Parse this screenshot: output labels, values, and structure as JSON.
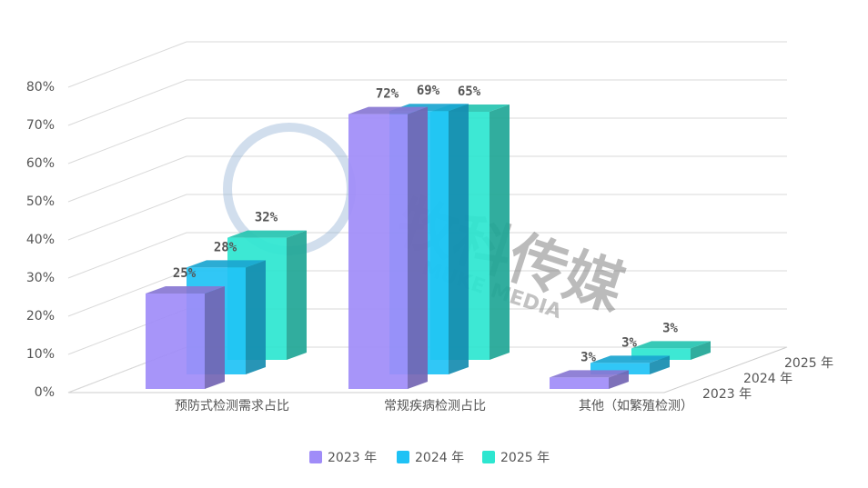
{
  "chart_data": {
    "type": "bar",
    "categories": [
      "预防式检测需求占比",
      "常规疾病检测占比",
      "其他（如繁殖检测）"
    ],
    "series": [
      {
        "name": "2023 年",
        "color": "#a08cf8",
        "values": [
          25,
          72,
          3
        ],
        "value_labels": [
          "25%",
          "72%",
          "3%"
        ]
      },
      {
        "name": "2024 年",
        "color": "#1fc2f5",
        "values": [
          28,
          69,
          3
        ],
        "value_labels": [
          "28%",
          "69%",
          "3%"
        ]
      },
      {
        "name": "2025 年",
        "color": "#2de6d0",
        "values": [
          32,
          65,
          3
        ],
        "value_labels": [
          "32%",
          "65%",
          "3%"
        ]
      }
    ],
    "ylim": [
      0,
      80
    ],
    "yticks": [
      {
        "value": 0,
        "label": "0%"
      },
      {
        "value": 10,
        "label": "10%"
      },
      {
        "value": 20,
        "label": "20%"
      },
      {
        "value": 30,
        "label": "30%"
      },
      {
        "value": 40,
        "label": "40%"
      },
      {
        "value": 50,
        "label": "50%"
      },
      {
        "value": 60,
        "label": "60%"
      },
      {
        "value": 70,
        "label": "70%"
      },
      {
        "value": 80,
        "label": "80%"
      }
    ],
    "grid": true
  },
  "watermark": {
    "text": "牧科传媒",
    "subtext": "MUKE MEDIA"
  }
}
